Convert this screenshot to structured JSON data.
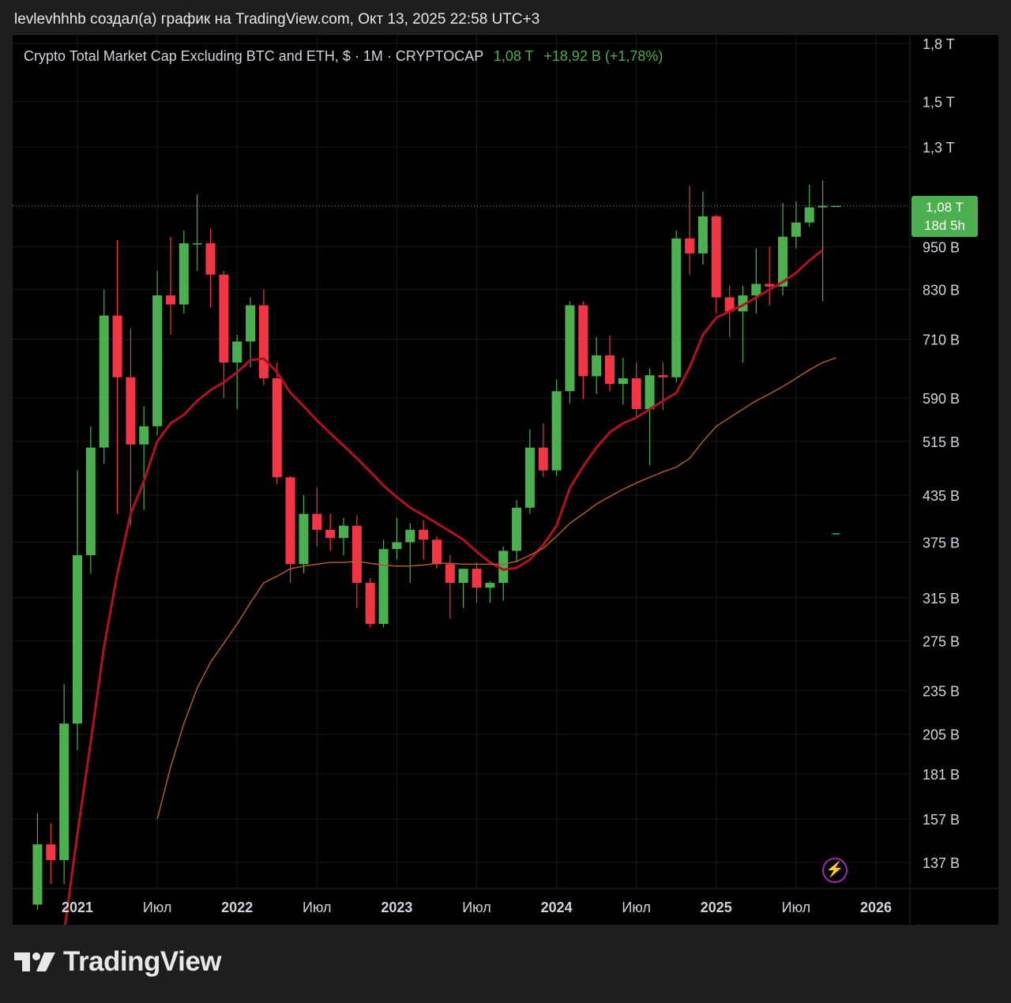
{
  "header": {
    "attribution": "levlevhhhb создал(а) график на TradingView.com, Окт 13, 2025 22:58 UTC+3"
  },
  "legend": {
    "symbol": "Crypto Total Market Cap Excluding BTC and ETH, $ · 1M · CRYPTOCAP",
    "last": "1,08 T",
    "change": "+18,92 B (+1,78%)"
  },
  "badge": {
    "price": "1,08 T",
    "countdown": "18d 5h"
  },
  "brand": {
    "name": "TradingView"
  },
  "colors": {
    "up": "#4caf50",
    "down": "#f23645",
    "ma_fast": "#b2121f",
    "ma_slow": "#b35a2a",
    "background": "#000000",
    "grid": "#1a1a1a",
    "accent_purple": "#9c27b0"
  },
  "icons": {
    "alert": "lightning-bolt-icon",
    "logo": "tradingview-logo-icon"
  },
  "chart_data": {
    "type": "candlestick",
    "title": "Crypto Total Market Cap Excluding BTC and ETH, $ · 1M · CRYPTOCAP",
    "scale": "log",
    "grid": true,
    "ylim": [
      120,
      1850
    ],
    "y_unit": "B (billions USD)",
    "y_ticks": [
      {
        "value": 1800,
        "label": "1,8 T"
      },
      {
        "value": 1500,
        "label": "1,5 T"
      },
      {
        "value": 1300,
        "label": "1,3 T"
      },
      {
        "value": 950,
        "label": "950 B"
      },
      {
        "value": 830,
        "label": "830 B"
      },
      {
        "value": 710,
        "label": "710 B"
      },
      {
        "value": 590,
        "label": "590 B"
      },
      {
        "value": 515,
        "label": "515 B"
      },
      {
        "value": 435,
        "label": "435 B"
      },
      {
        "value": 375,
        "label": "375 B"
      },
      {
        "value": 315,
        "label": "315 B"
      },
      {
        "value": 275,
        "label": "275 B"
      },
      {
        "value": 235,
        "label": "235 B"
      },
      {
        "value": 205,
        "label": "205 B"
      },
      {
        "value": 181,
        "label": "181 B"
      },
      {
        "value": 157,
        "label": "157 B"
      },
      {
        "value": 137,
        "label": "137 B"
      }
    ],
    "x_ticks": [
      {
        "month": "2021-01",
        "label": "2021",
        "bold": true
      },
      {
        "month": "2021-07",
        "label": "Июл",
        "bold": false
      },
      {
        "month": "2022-01",
        "label": "2022",
        "bold": true
      },
      {
        "month": "2022-07",
        "label": "Июл",
        "bold": false
      },
      {
        "month": "2023-01",
        "label": "2023",
        "bold": true
      },
      {
        "month": "2023-07",
        "label": "Июл",
        "bold": false
      },
      {
        "month": "2024-01",
        "label": "2024",
        "bold": true
      },
      {
        "month": "2024-07",
        "label": "Июл",
        "bold": false
      },
      {
        "month": "2025-01",
        "label": "2025",
        "bold": true
      },
      {
        "month": "2025-07",
        "label": "Июл",
        "bold": false
      },
      {
        "month": "2026-01",
        "label": "2026",
        "bold": true
      }
    ],
    "last_price": 1080,
    "candles": [
      {
        "m": "2020-10",
        "o": 120,
        "h": 160,
        "l": 118,
        "c": 145
      },
      {
        "m": "2020-11",
        "o": 145,
        "h": 155,
        "l": 128,
        "c": 138
      },
      {
        "m": "2020-12",
        "o": 138,
        "h": 240,
        "l": 128,
        "c": 212
      },
      {
        "m": "2021-01",
        "o": 212,
        "h": 470,
        "l": 195,
        "c": 360
      },
      {
        "m": "2021-02",
        "o": 360,
        "h": 540,
        "l": 340,
        "c": 505
      },
      {
        "m": "2021-03",
        "o": 505,
        "h": 830,
        "l": 480,
        "c": 765
      },
      {
        "m": "2021-04",
        "o": 765,
        "h": 970,
        "l": 410,
        "c": 630
      },
      {
        "m": "2021-05",
        "o": 630,
        "h": 735,
        "l": 395,
        "c": 510
      },
      {
        "m": "2021-06",
        "o": 510,
        "h": 575,
        "l": 415,
        "c": 540
      },
      {
        "m": "2021-07",
        "o": 540,
        "h": 880,
        "l": 525,
        "c": 815
      },
      {
        "m": "2021-08",
        "o": 815,
        "h": 980,
        "l": 720,
        "c": 792
      },
      {
        "m": "2021-09",
        "o": 792,
        "h": 1000,
        "l": 770,
        "c": 960
      },
      {
        "m": "2021-10",
        "o": 960,
        "h": 1120,
        "l": 880,
        "c": 960
      },
      {
        "m": "2021-11",
        "o": 960,
        "h": 1005,
        "l": 785,
        "c": 870
      },
      {
        "m": "2021-12",
        "o": 870,
        "h": 880,
        "l": 590,
        "c": 660
      },
      {
        "m": "2022-01",
        "o": 660,
        "h": 720,
        "l": 570,
        "c": 705
      },
      {
        "m": "2022-02",
        "o": 705,
        "h": 810,
        "l": 650,
        "c": 790
      },
      {
        "m": "2022-03",
        "o": 790,
        "h": 830,
        "l": 615,
        "c": 628
      },
      {
        "m": "2022-04",
        "o": 628,
        "h": 660,
        "l": 450,
        "c": 460
      },
      {
        "m": "2022-05",
        "o": 460,
        "h": 462,
        "l": 330,
        "c": 350
      },
      {
        "m": "2022-06",
        "o": 350,
        "h": 435,
        "l": 340,
        "c": 410
      },
      {
        "m": "2022-07",
        "o": 410,
        "h": 445,
        "l": 370,
        "c": 390
      },
      {
        "m": "2022-08",
        "o": 390,
        "h": 410,
        "l": 365,
        "c": 380
      },
      {
        "m": "2022-09",
        "o": 380,
        "h": 405,
        "l": 360,
        "c": 395
      },
      {
        "m": "2022-10",
        "o": 395,
        "h": 408,
        "l": 305,
        "c": 330
      },
      {
        "m": "2022-11",
        "o": 330,
        "h": 335,
        "l": 287,
        "c": 290
      },
      {
        "m": "2022-12",
        "o": 290,
        "h": 378,
        "l": 287,
        "c": 367
      },
      {
        "m": "2023-01",
        "o": 367,
        "h": 405,
        "l": 355,
        "c": 375
      },
      {
        "m": "2023-02",
        "o": 375,
        "h": 398,
        "l": 330,
        "c": 390
      },
      {
        "m": "2023-03",
        "o": 390,
        "h": 402,
        "l": 355,
        "c": 378
      },
      {
        "m": "2023-04",
        "o": 378,
        "h": 382,
        "l": 345,
        "c": 350
      },
      {
        "m": "2023-05",
        "o": 350,
        "h": 360,
        "l": 295,
        "c": 330
      },
      {
        "m": "2023-06",
        "o": 330,
        "h": 342,
        "l": 305,
        "c": 345
      },
      {
        "m": "2023-07",
        "o": 345,
        "h": 352,
        "l": 310,
        "c": 325
      },
      {
        "m": "2023-08",
        "o": 325,
        "h": 332,
        "l": 310,
        "c": 330
      },
      {
        "m": "2023-09",
        "o": 330,
        "h": 370,
        "l": 312,
        "c": 365
      },
      {
        "m": "2023-10",
        "o": 365,
        "h": 428,
        "l": 352,
        "c": 418
      },
      {
        "m": "2023-11",
        "o": 418,
        "h": 535,
        "l": 410,
        "c": 505
      },
      {
        "m": "2023-12",
        "o": 505,
        "h": 545,
        "l": 460,
        "c": 470
      },
      {
        "m": "2024-01",
        "o": 470,
        "h": 625,
        "l": 462,
        "c": 603
      },
      {
        "m": "2024-02",
        "o": 603,
        "h": 800,
        "l": 580,
        "c": 790
      },
      {
        "m": "2024-03",
        "o": 790,
        "h": 800,
        "l": 588,
        "c": 632
      },
      {
        "m": "2024-04",
        "o": 632,
        "h": 715,
        "l": 598,
        "c": 675
      },
      {
        "m": "2024-05",
        "o": 675,
        "h": 718,
        "l": 603,
        "c": 617
      },
      {
        "m": "2024-06",
        "o": 617,
        "h": 670,
        "l": 578,
        "c": 628
      },
      {
        "m": "2024-07",
        "o": 628,
        "h": 660,
        "l": 555,
        "c": 570
      },
      {
        "m": "2024-08",
        "o": 570,
        "h": 648,
        "l": 478,
        "c": 634
      },
      {
        "m": "2024-09",
        "o": 634,
        "h": 660,
        "l": 568,
        "c": 630
      },
      {
        "m": "2024-10",
        "o": 630,
        "h": 1000,
        "l": 620,
        "c": 975
      },
      {
        "m": "2024-11",
        "o": 975,
        "h": 1150,
        "l": 870,
        "c": 930
      },
      {
        "m": "2024-12",
        "o": 930,
        "h": 1130,
        "l": 898,
        "c": 1045
      },
      {
        "m": "2025-01",
        "o": 1045,
        "h": 1050,
        "l": 770,
        "c": 810
      },
      {
        "m": "2025-02",
        "o": 810,
        "h": 840,
        "l": 715,
        "c": 775
      },
      {
        "m": "2025-03",
        "o": 775,
        "h": 840,
        "l": 660,
        "c": 815
      },
      {
        "m": "2025-04",
        "o": 815,
        "h": 945,
        "l": 770,
        "c": 845
      },
      {
        "m": "2025-05",
        "o": 845,
        "h": 950,
        "l": 790,
        "c": 838
      },
      {
        "m": "2025-06",
        "o": 838,
        "h": 1090,
        "l": 815,
        "c": 980
      },
      {
        "m": "2025-07",
        "o": 980,
        "h": 1095,
        "l": 945,
        "c": 1025
      },
      {
        "m": "2025-08",
        "o": 1025,
        "h": 1155,
        "l": 1012,
        "c": 1075
      },
      {
        "m": "2025-09",
        "o": 1075,
        "h": 1170,
        "l": 800,
        "c": 1080
      },
      {
        "m": "2025-10",
        "o": 1080,
        "h": 1080,
        "l": 1080,
        "c": 1080
      }
    ],
    "series": [
      {
        "name": "",
        "kind": "ma_fast",
        "points": [
          [
            "2020-12",
            110
          ],
          [
            "2021-01",
            150
          ],
          [
            "2021-02",
            200
          ],
          [
            "2021-03",
            270
          ],
          [
            "2021-04",
            340
          ],
          [
            "2021-05",
            410
          ],
          [
            "2021-06",
            455
          ],
          [
            "2021-07",
            515
          ],
          [
            "2021-08",
            545
          ],
          [
            "2021-09",
            560
          ],
          [
            "2021-10",
            585
          ],
          [
            "2021-11",
            605
          ],
          [
            "2021-12",
            620
          ],
          [
            "2022-01",
            640
          ],
          [
            "2022-02",
            665
          ],
          [
            "2022-03",
            668
          ],
          [
            "2022-04",
            640
          ],
          [
            "2022-05",
            600
          ],
          [
            "2022-06",
            575
          ],
          [
            "2022-07",
            550
          ],
          [
            "2022-08",
            528
          ],
          [
            "2022-09",
            508
          ],
          [
            "2022-10",
            488
          ],
          [
            "2022-11",
            468
          ],
          [
            "2022-12",
            448
          ],
          [
            "2023-01",
            432
          ],
          [
            "2023-02",
            418
          ],
          [
            "2023-03",
            408
          ],
          [
            "2023-04",
            398
          ],
          [
            "2023-05",
            388
          ],
          [
            "2023-06",
            378
          ],
          [
            "2023-07",
            364
          ],
          [
            "2023-08",
            352
          ],
          [
            "2023-09",
            344
          ],
          [
            "2023-10",
            346
          ],
          [
            "2023-11",
            355
          ],
          [
            "2023-12",
            372
          ],
          [
            "2024-01",
            395
          ],
          [
            "2024-02",
            445
          ],
          [
            "2024-03",
            476
          ],
          [
            "2024-04",
            505
          ],
          [
            "2024-05",
            530
          ],
          [
            "2024-06",
            545
          ],
          [
            "2024-07",
            555
          ],
          [
            "2024-08",
            570
          ],
          [
            "2024-09",
            585
          ],
          [
            "2024-10",
            600
          ],
          [
            "2024-11",
            650
          ],
          [
            "2024-12",
            720
          ],
          [
            "2025-01",
            760
          ],
          [
            "2025-02",
            775
          ],
          [
            "2025-03",
            790
          ],
          [
            "2025-04",
            810
          ],
          [
            "2025-05",
            830
          ],
          [
            "2025-06",
            850
          ],
          [
            "2025-07",
            875
          ],
          [
            "2025-08",
            910
          ],
          [
            "2025-09",
            940
          ]
        ]
      },
      {
        "name": "",
        "kind": "ma_slow",
        "points": [
          [
            "2021-07",
            157
          ],
          [
            "2021-08",
            185
          ],
          [
            "2021-09",
            212
          ],
          [
            "2021-10",
            237
          ],
          [
            "2021-11",
            257
          ],
          [
            "2021-12",
            273
          ],
          [
            "2022-01",
            290
          ],
          [
            "2022-02",
            310
          ],
          [
            "2022-03",
            330
          ],
          [
            "2022-04",
            337
          ],
          [
            "2022-05",
            345
          ],
          [
            "2022-06",
            348
          ],
          [
            "2022-07",
            350
          ],
          [
            "2022-08",
            352
          ],
          [
            "2022-09",
            352
          ],
          [
            "2022-10",
            353
          ],
          [
            "2022-11",
            351
          ],
          [
            "2022-12",
            349
          ],
          [
            "2023-01",
            348
          ],
          [
            "2023-02",
            348
          ],
          [
            "2023-03",
            349
          ],
          [
            "2023-04",
            351
          ],
          [
            "2023-05",
            351
          ],
          [
            "2023-06",
            350
          ],
          [
            "2023-07",
            350
          ],
          [
            "2023-08",
            350
          ],
          [
            "2023-09",
            350
          ],
          [
            "2023-10",
            353
          ],
          [
            "2023-11",
            360
          ],
          [
            "2023-12",
            368
          ],
          [
            "2024-01",
            382
          ],
          [
            "2024-02",
            398
          ],
          [
            "2024-03",
            410
          ],
          [
            "2024-04",
            423
          ],
          [
            "2024-05",
            433
          ],
          [
            "2024-06",
            443
          ],
          [
            "2024-07",
            452
          ],
          [
            "2024-08",
            460
          ],
          [
            "2024-09",
            468
          ],
          [
            "2024-10",
            475
          ],
          [
            "2024-11",
            488
          ],
          [
            "2024-12",
            515
          ],
          [
            "2025-01",
            540
          ],
          [
            "2025-02",
            555
          ],
          [
            "2025-03",
            570
          ],
          [
            "2025-04",
            585
          ],
          [
            "2025-05",
            598
          ],
          [
            "2025-06",
            612
          ],
          [
            "2025-07",
            628
          ],
          [
            "2025-08",
            645
          ],
          [
            "2025-09",
            660
          ],
          [
            "2025-10",
            670
          ]
        ]
      }
    ],
    "markers": [
      {
        "m": "2025-10",
        "value": 385,
        "color": "#26a69a"
      }
    ]
  }
}
